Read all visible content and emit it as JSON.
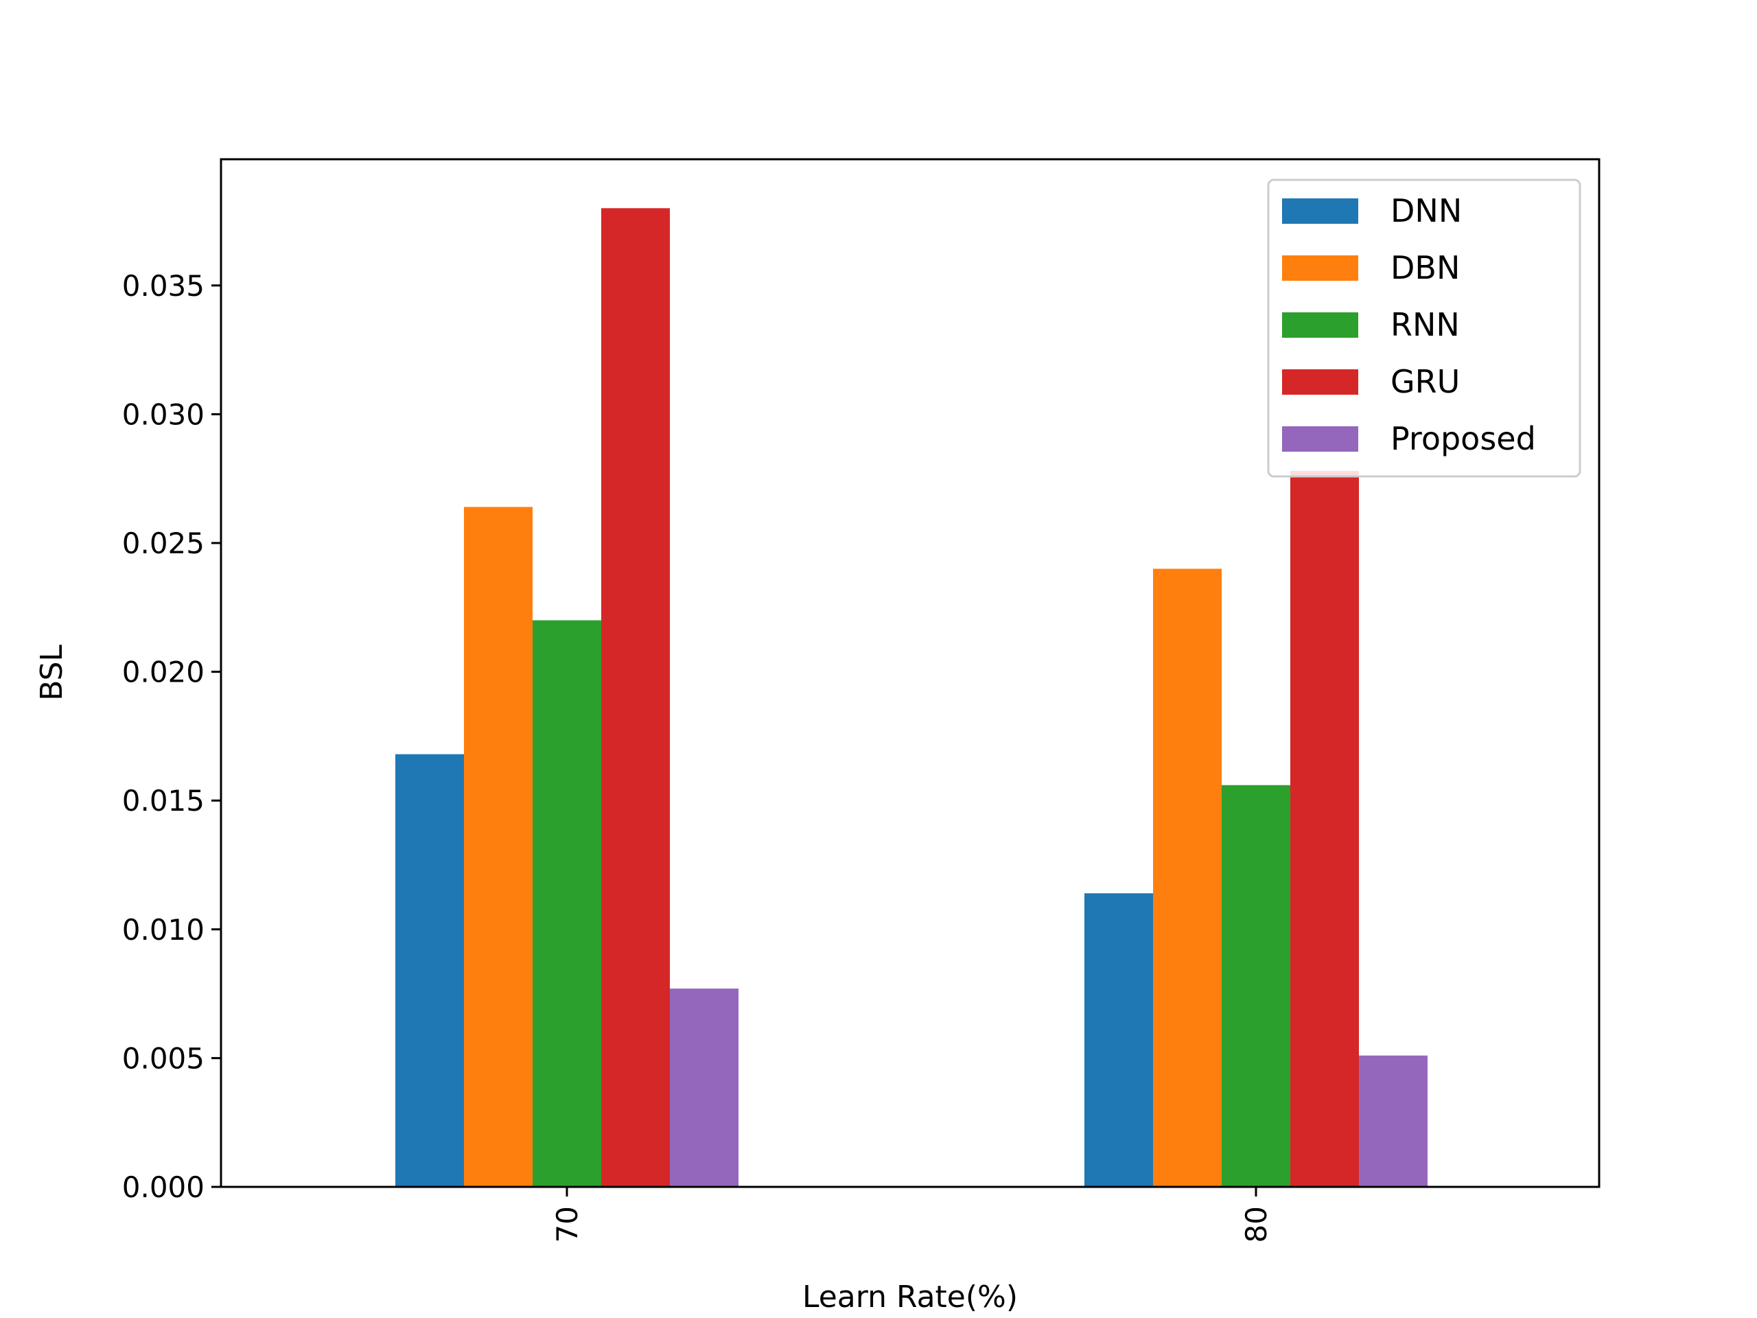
{
  "chart_data": {
    "type": "bar",
    "title": "",
    "xlabel": "Learn Rate(%)",
    "ylabel": "BSL",
    "categories": [
      "70",
      "80"
    ],
    "ylim": [
      0,
      0.0399
    ],
    "yticks": [
      "0.000",
      "0.005",
      "0.010",
      "0.015",
      "0.020",
      "0.025",
      "0.030",
      "0.035"
    ],
    "grid": false,
    "legend_position": "top-right",
    "series": [
      {
        "name": "DNN",
        "color": "#1f77b4",
        "values": [
          0.0168,
          0.0114
        ]
      },
      {
        "name": "DBN",
        "color": "#ff7f0e",
        "values": [
          0.0264,
          0.024
        ]
      },
      {
        "name": "RNN",
        "color": "#2ca02c",
        "values": [
          0.022,
          0.0156
        ]
      },
      {
        "name": "GRU",
        "color": "#d62728",
        "values": [
          0.038,
          0.0278
        ]
      },
      {
        "name": "Proposed",
        "color": "#9467bd",
        "values": [
          0.0077,
          0.0051
        ]
      }
    ]
  }
}
